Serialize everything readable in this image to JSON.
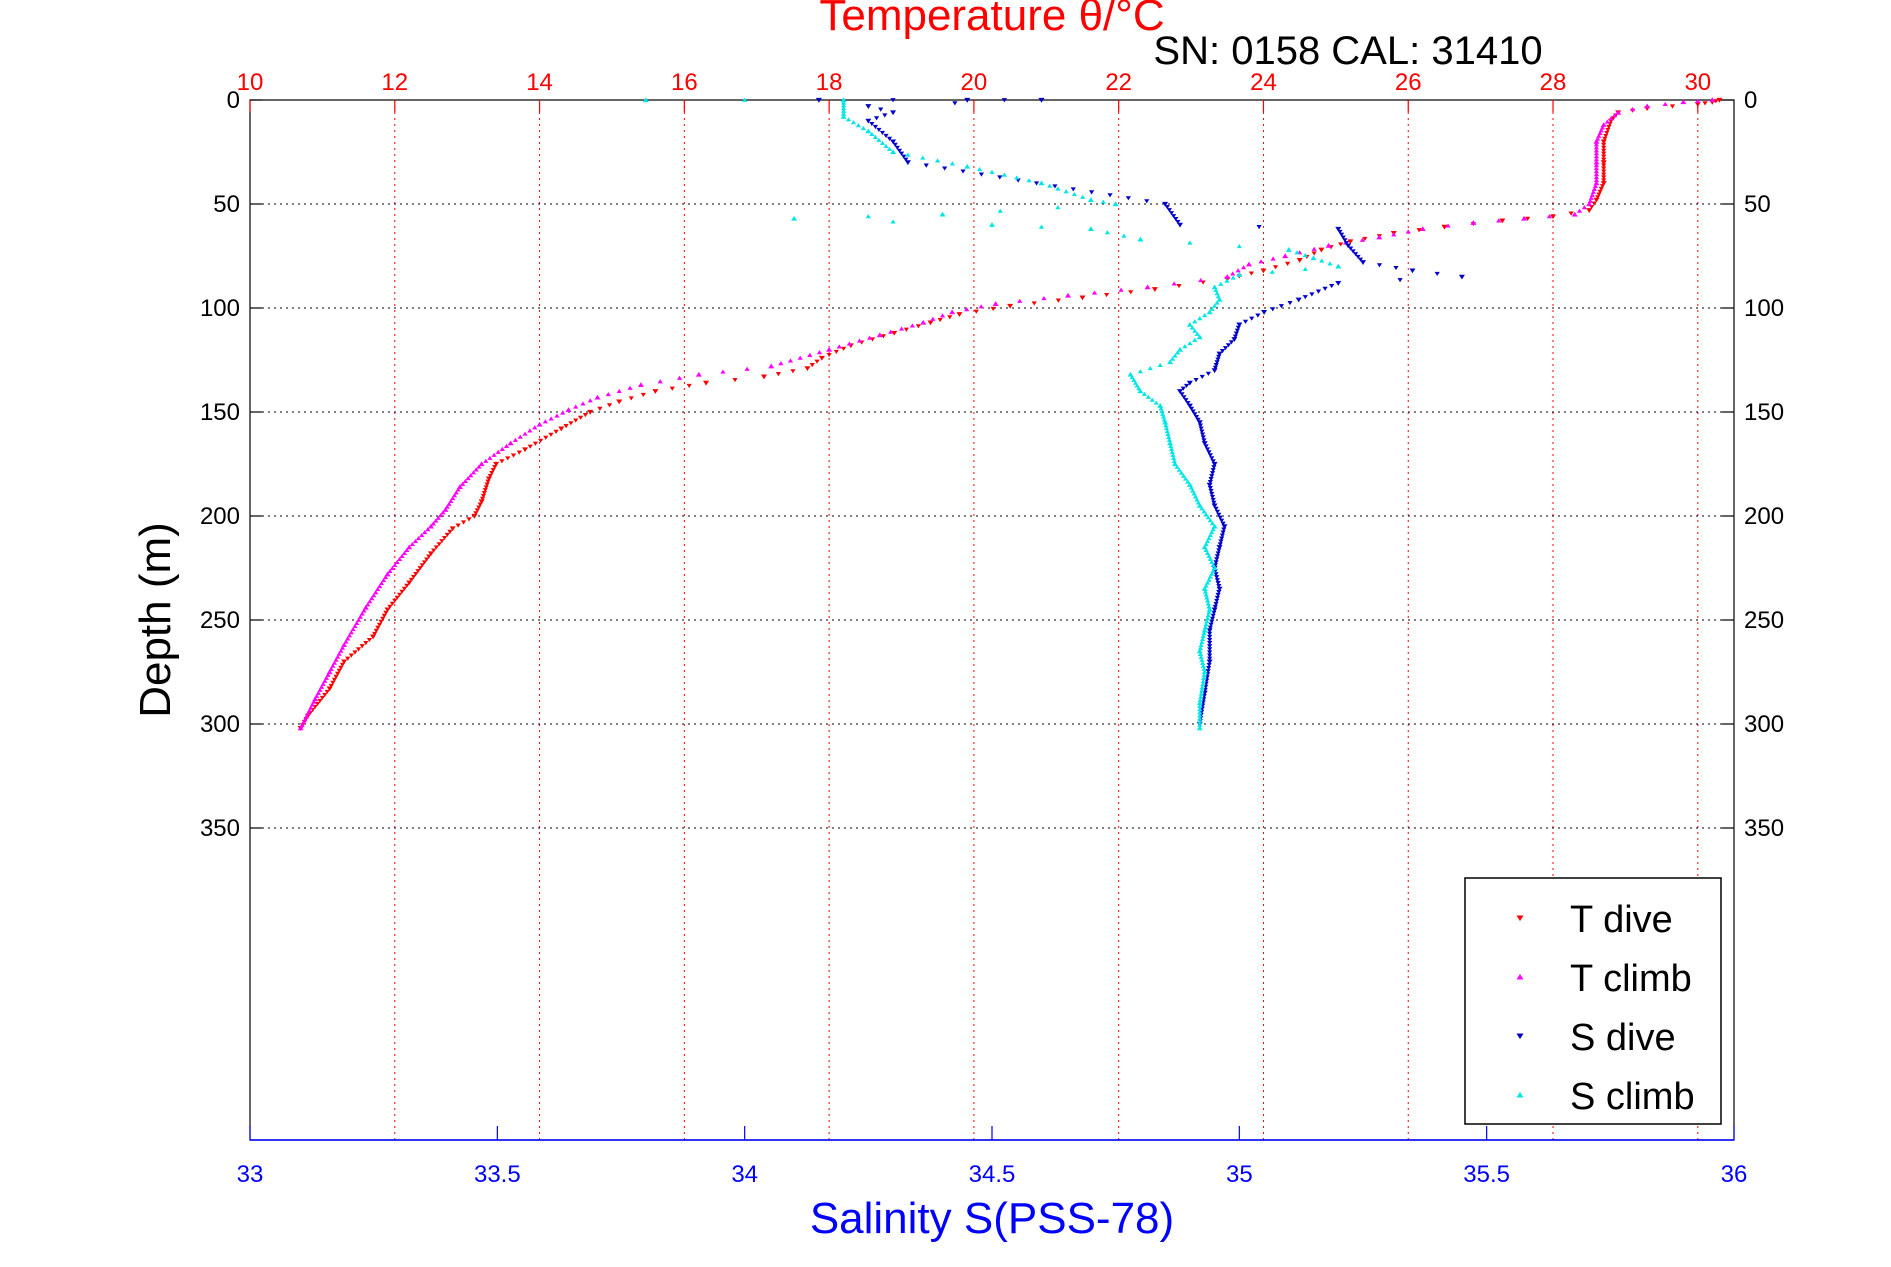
{
  "chart_data": {
    "type": "scatter",
    "title": "Temperature θ/°C",
    "annotation": "SN: 0158  CAL: 31410",
    "ylabel": "Depth (m)",
    "xlabel_bottom": "Salinity S(PSS-78)",
    "axes": {
      "temperature": {
        "lim": [
          10,
          30.5
        ],
        "ticks": [
          10,
          12,
          14,
          16,
          18,
          20,
          22,
          24,
          26,
          28,
          30
        ],
        "color": "#ff0000",
        "position": "top"
      },
      "salinity": {
        "lim": [
          33,
          36
        ],
        "ticks": [
          "33",
          "33.5",
          "34",
          "34.5",
          "35",
          "35.5",
          "36"
        ],
        "color": "#0000ff",
        "position": "bottom"
      },
      "depth": {
        "lim": [
          0,
          500
        ],
        "reversed": true,
        "ticks": [
          0,
          50,
          100,
          150,
          200,
          250,
          300,
          350
        ]
      }
    },
    "grid": true,
    "legend": {
      "placement": "bottom-right",
      "entries": [
        {
          "label": "T dive",
          "color": "#ff0000",
          "marker": "triangle-down"
        },
        {
          "label": "T climb",
          "color": "#ff00ff",
          "marker": "triangle-up"
        },
        {
          "label": "S dive",
          "color": "#0000cc",
          "marker": "triangle-down"
        },
        {
          "label": "S climb",
          "color": "#00e5e5",
          "marker": "triangle-up"
        }
      ]
    },
    "series": [
      {
        "name": "T dive",
        "axis": "temperature",
        "color": "#ff0000",
        "marker": "triangle-down",
        "points": [
          [
            30.3,
            0
          ],
          [
            30.2,
            1
          ],
          [
            30.0,
            2
          ],
          [
            29.3,
            4
          ],
          [
            28.9,
            6
          ],
          [
            28.8,
            10
          ],
          [
            28.7,
            20
          ],
          [
            28.7,
            30
          ],
          [
            28.7,
            40
          ],
          [
            28.6,
            48
          ],
          [
            28.5,
            53
          ],
          [
            28.0,
            56
          ],
          [
            27.3,
            58
          ],
          [
            26.5,
            61
          ],
          [
            25.8,
            64
          ],
          [
            25.2,
            68
          ],
          [
            24.8,
            72
          ],
          [
            24.5,
            77
          ],
          [
            24.0,
            82
          ],
          [
            23.5,
            86
          ],
          [
            22.5,
            91
          ],
          [
            21.5,
            95
          ],
          [
            20.5,
            99
          ],
          [
            19.8,
            103
          ],
          [
            19.4,
            107
          ],
          [
            18.9,
            112
          ],
          [
            18.3,
            118
          ],
          [
            17.9,
            124
          ],
          [
            17.7,
            129
          ],
          [
            17.1,
            133
          ],
          [
            16.3,
            136
          ],
          [
            15.6,
            140
          ],
          [
            15.1,
            145
          ],
          [
            14.7,
            150
          ],
          [
            14.3,
            158
          ],
          [
            13.8,
            168
          ],
          [
            13.4,
            175
          ],
          [
            13.3,
            182
          ],
          [
            13.2,
            193
          ],
          [
            13.1,
            200
          ],
          [
            12.8,
            206
          ],
          [
            12.5,
            218
          ],
          [
            12.2,
            232
          ],
          [
            11.9,
            245
          ],
          [
            11.7,
            258
          ],
          [
            11.3,
            270
          ],
          [
            11.1,
            283
          ],
          [
            10.8,
            296
          ],
          [
            10.7,
            302
          ]
        ]
      },
      {
        "name": "T climb",
        "axis": "temperature",
        "color": "#ff00ff",
        "marker": "triangle-up",
        "points": [
          [
            30.2,
            0
          ],
          [
            29.8,
            1
          ],
          [
            29.3,
            3
          ],
          [
            28.9,
            6
          ],
          [
            28.7,
            12
          ],
          [
            28.6,
            20
          ],
          [
            28.6,
            30
          ],
          [
            28.6,
            40
          ],
          [
            28.5,
            50
          ],
          [
            28.3,
            55
          ],
          [
            27.6,
            57
          ],
          [
            26.9,
            59
          ],
          [
            26.2,
            62
          ],
          [
            25.6,
            66
          ],
          [
            24.9,
            70
          ],
          [
            24.3,
            75
          ],
          [
            23.8,
            79
          ],
          [
            23.5,
            85
          ],
          [
            22.4,
            90
          ],
          [
            21.3,
            94
          ],
          [
            20.3,
            98
          ],
          [
            19.7,
            102
          ],
          [
            19.3,
            107
          ],
          [
            18.7,
            113
          ],
          [
            18.0,
            120
          ],
          [
            17.2,
            128
          ],
          [
            16.2,
            132
          ],
          [
            15.4,
            137
          ],
          [
            14.8,
            143
          ],
          [
            14.4,
            149
          ],
          [
            14.0,
            156
          ],
          [
            13.6,
            165
          ],
          [
            13.2,
            175
          ],
          [
            12.9,
            186
          ],
          [
            12.7,
            197
          ],
          [
            12.5,
            205
          ],
          [
            12.2,
            215
          ],
          [
            11.9,
            228
          ],
          [
            11.6,
            244
          ],
          [
            11.3,
            262
          ],
          [
            11.1,
            275
          ],
          [
            10.9,
            288
          ],
          [
            10.7,
            302
          ]
        ]
      },
      {
        "name": "S dive",
        "axis": "salinity",
        "color": "#0000cc",
        "marker": "triangle-down",
        "points": [
          [
            34.15,
            0
          ],
          [
            34.45,
            0
          ],
          [
            34.6,
            0
          ],
          [
            34.25,
            3
          ],
          [
            34.3,
            6
          ],
          [
            34.25,
            10
          ],
          [
            34.3,
            20
          ],
          [
            34.33,
            30
          ],
          [
            34.85,
            50
          ],
          [
            34.88,
            60
          ],
          [
            35.2,
            62
          ],
          [
            35.22,
            70
          ],
          [
            35.25,
            78
          ],
          [
            35.35,
            82
          ],
          [
            35.45,
            85
          ],
          [
            35.2,
            88
          ],
          [
            35.12,
            96
          ],
          [
            35.05,
            102
          ],
          [
            35.0,
            108
          ],
          [
            34.99,
            115
          ],
          [
            34.96,
            122
          ],
          [
            34.95,
            130
          ],
          [
            34.9,
            136
          ],
          [
            34.88,
            140
          ],
          [
            34.9,
            147
          ],
          [
            34.92,
            155
          ],
          [
            34.93,
            165
          ],
          [
            34.95,
            175
          ],
          [
            34.94,
            185
          ],
          [
            34.95,
            195
          ],
          [
            34.97,
            205
          ],
          [
            34.96,
            215
          ],
          [
            34.95,
            225
          ],
          [
            34.96,
            235
          ],
          [
            34.95,
            245
          ],
          [
            34.94,
            255
          ],
          [
            34.94,
            270
          ],
          [
            34.93,
            285
          ],
          [
            34.92,
            300
          ]
        ]
      },
      {
        "name": "S climb",
        "axis": "salinity",
        "color": "#00e5e5",
        "marker": "triangle-up",
        "points": [
          [
            33.8,
            0
          ],
          [
            34.2,
            0
          ],
          [
            34.2,
            8
          ],
          [
            34.25,
            15
          ],
          [
            34.3,
            25
          ],
          [
            34.45,
            32
          ],
          [
            34.6,
            40
          ],
          [
            34.7,
            48
          ],
          [
            34.75,
            50
          ],
          [
            34.4,
            55
          ],
          [
            34.1,
            57
          ],
          [
            34.5,
            60
          ],
          [
            34.7,
            62
          ],
          [
            34.8,
            67
          ],
          [
            35.1,
            72
          ],
          [
            35.15,
            76
          ],
          [
            35.2,
            80
          ],
          [
            35.0,
            84
          ],
          [
            34.95,
            90
          ],
          [
            34.96,
            96
          ],
          [
            34.94,
            102
          ],
          [
            34.9,
            108
          ],
          [
            34.92,
            114
          ],
          [
            34.88,
            120
          ],
          [
            34.86,
            126
          ],
          [
            34.78,
            132
          ],
          [
            34.8,
            140
          ],
          [
            34.84,
            147
          ],
          [
            34.85,
            155
          ],
          [
            34.86,
            165
          ],
          [
            34.87,
            175
          ],
          [
            34.9,
            185
          ],
          [
            34.92,
            195
          ],
          [
            34.95,
            205
          ],
          [
            34.93,
            215
          ],
          [
            34.95,
            225
          ],
          [
            34.93,
            235
          ],
          [
            34.94,
            245
          ],
          [
            34.93,
            255
          ],
          [
            34.92,
            265
          ],
          [
            34.93,
            275
          ],
          [
            34.92,
            290
          ],
          [
            34.92,
            302
          ]
        ]
      }
    ]
  }
}
